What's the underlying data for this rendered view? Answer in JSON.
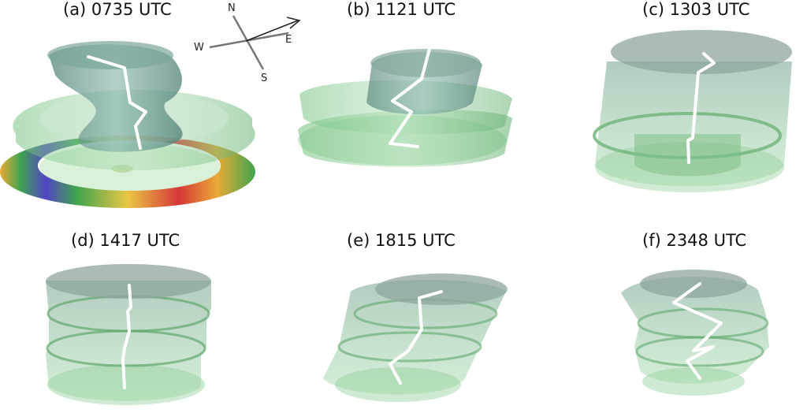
{
  "panels": [
    {
      "id": "a",
      "title": "(a) 0735 UTC"
    },
    {
      "id": "b",
      "title": "(b) 1121 UTC"
    },
    {
      "id": "c",
      "title": "(c) 1303 UTC"
    },
    {
      "id": "d",
      "title": "(d) 1417 UTC"
    },
    {
      "id": "e",
      "title": "(e) 1815 UTC"
    },
    {
      "id": "f",
      "title": "(f) 2348 UTC"
    }
  ],
  "compass": {
    "north": "N",
    "south": "S",
    "east": "E",
    "west": "W"
  },
  "colors": {
    "surface_green": "#7fc98a",
    "surface_edge": "#5aa86a",
    "surface_grey": "#8a9a94",
    "core_teal": "#5e8f86",
    "center_line": "#ffffff"
  }
}
